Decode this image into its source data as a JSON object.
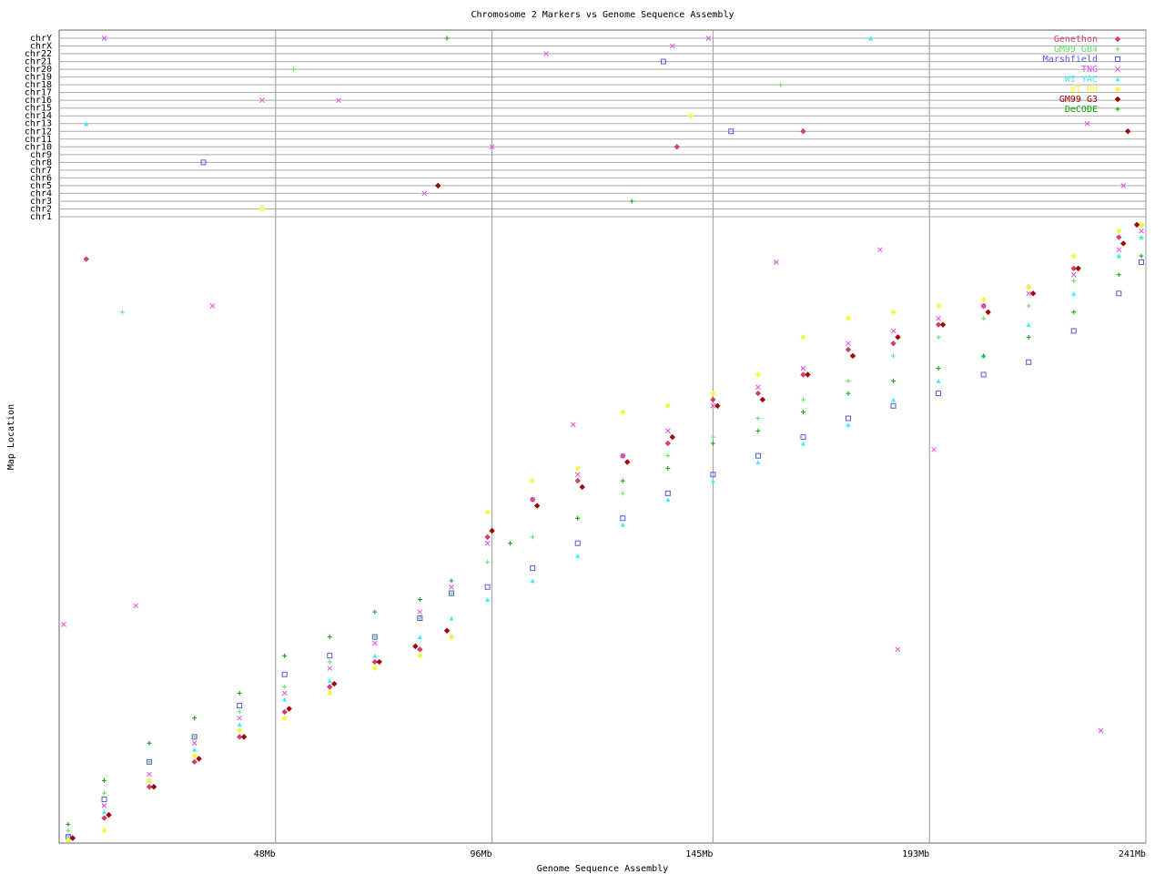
{
  "chart_data": {
    "type": "scatter",
    "title": "Chromosome 2 Markers vs Genome Sequence Assembly",
    "x_label": "Genome Sequence Assembly",
    "y_label": "Map Location",
    "xlim": [
      0,
      241
    ],
    "xticks": [
      {
        "value": 48,
        "label": "48Mb"
      },
      {
        "value": 96,
        "label": "96Mb"
      },
      {
        "value": 145,
        "label": "145Mb"
      },
      {
        "value": 193,
        "label": "193Mb"
      },
      {
        "value": 241,
        "label": "241Mb"
      }
    ],
    "ylim": [
      0,
      100
    ],
    "grid": true,
    "legend": "top-right",
    "chromosomes": [
      "chr1",
      "chr2",
      "chr3",
      "chr4",
      "chr5",
      "chr6",
      "chr7",
      "chr8",
      "chr9",
      "chr10",
      "chr11",
      "chr12",
      "chr13",
      "chr14",
      "chr15",
      "chr16",
      "chr17",
      "chr18",
      "chr19",
      "chr20",
      "chr21",
      "chr22",
      "chrX",
      "chrY"
    ],
    "series": [
      {
        "name": "Genethon",
        "color": "#d04068",
        "marker": "diamond",
        "x": [
          2,
          10,
          20,
          30,
          40,
          50,
          60,
          70,
          80,
          87,
          95,
          105,
          115,
          125,
          135,
          145,
          155,
          165,
          175,
          185,
          195,
          205,
          215,
          225,
          235,
          240,
          6
        ],
        "values": [
          0.5,
          4,
          9,
          13,
          17,
          21,
          25,
          29,
          31,
          33,
          49,
          55,
          58,
          62,
          64,
          71,
          72,
          75,
          79,
          80,
          83,
          86,
          89,
          92,
          97,
          99,
          93.5
        ],
        "other_x": [
          137,
          165
        ],
        "other_chrom": [
          "chr10",
          "chr12"
        ]
      },
      {
        "name": "GM99 GB4",
        "color": "#60e060",
        "marker": "plus",
        "x": [
          2,
          10,
          20,
          30,
          40,
          50,
          60,
          70,
          80,
          87,
          95,
          105,
          115,
          125,
          135,
          145,
          155,
          165,
          175,
          185,
          195,
          205,
          215,
          225,
          235,
          240,
          14
        ],
        "values": [
          2,
          8,
          13,
          17,
          21,
          25,
          29,
          33,
          36,
          40,
          45,
          49,
          52,
          56,
          62,
          65,
          68,
          71,
          74,
          78,
          81,
          84,
          86,
          90,
          94,
          97,
          85
        ],
        "other_x": [
          52,
          160
        ],
        "other_chrom": [
          "chr20",
          "chr18"
        ]
      },
      {
        "name": "Marshfield",
        "color": "#5858e0",
        "marker": "square",
        "x": [
          2,
          10,
          20,
          30,
          40,
          50,
          60,
          70,
          80,
          87,
          95,
          105,
          115,
          125,
          135,
          145,
          155,
          165,
          175,
          185,
          195,
          205,
          215,
          225,
          235,
          240
        ],
        "values": [
          1,
          7,
          13,
          17,
          22,
          27,
          30,
          33,
          36,
          40,
          41,
          44,
          48,
          52,
          56,
          59,
          62,
          65,
          68,
          70,
          72,
          75,
          77,
          82,
          88,
          93
        ],
        "other_x": [
          32,
          134,
          149
        ],
        "other_chrom": [
          "chr8",
          "chr21",
          "chr12"
        ]
      },
      {
        "name": "TNG",
        "color": "#e050e0",
        "marker": "x",
        "x": [
          2,
          10,
          20,
          30,
          40,
          50,
          60,
          70,
          80,
          87,
          95,
          105,
          115,
          125,
          135,
          145,
          155,
          165,
          175,
          185,
          195,
          205,
          215,
          225,
          235,
          240,
          1,
          34,
          114,
          194,
          186,
          231,
          182,
          17,
          159
        ],
        "values": [
          1,
          6,
          11,
          16,
          20,
          24,
          28,
          32,
          37,
          41,
          48,
          55,
          59,
          62,
          66,
          70,
          73,
          76,
          80,
          82,
          84,
          86,
          88,
          91,
          95,
          98,
          35,
          86,
          67,
          63,
          31,
          18,
          95,
          38,
          93
        ],
        "other_x": [
          10,
          45,
          62,
          108,
          136,
          144,
          236,
          228,
          81,
          96
        ],
        "other_chrom": [
          "chrY",
          "chr16",
          "chr16",
          "chr22",
          "chrX",
          "chrY",
          "chr5",
          "chr13",
          "chr4",
          "chr10"
        ]
      },
      {
        "name": "WI YAC",
        "color": "#40f0f0",
        "marker": "triangle",
        "x": [
          2,
          10,
          20,
          30,
          40,
          50,
          60,
          70,
          80,
          87,
          95,
          105,
          115,
          125,
          135,
          145,
          155,
          165,
          175,
          185,
          195,
          205,
          215,
          225,
          235,
          240
        ],
        "values": [
          1,
          5,
          10,
          15,
          19,
          23,
          26,
          30,
          33,
          36,
          39,
          42,
          46,
          51,
          55,
          58,
          61,
          64,
          67,
          71,
          74,
          78,
          83,
          88,
          94,
          97
        ],
        "other_x": [
          180,
          6
        ],
        "other_chrom": [
          "chrY",
          "chr13"
        ]
      },
      {
        "name": "WI RH",
        "color": "#f8f840",
        "marker": "diamond",
        "x": [
          2,
          10,
          20,
          30,
          40,
          50,
          60,
          70,
          80,
          87,
          95,
          105,
          115,
          125,
          135,
          145,
          155,
          165,
          175,
          185,
          195,
          205,
          215,
          225,
          235,
          240
        ],
        "values": [
          0.5,
          2,
          10,
          14,
          18,
          20,
          24,
          28,
          30,
          33,
          53,
          58,
          60,
          69,
          70,
          72,
          75,
          81,
          84,
          85,
          86,
          87,
          89,
          94,
          98,
          99
        ],
        "other_x": [
          45,
          140
        ],
        "other_chrom": [
          "chr2",
          "chr14"
        ]
      },
      {
        "name": "GM99 G3",
        "color": "#a00000",
        "marker": "diamond",
        "x": [
          3,
          11,
          21,
          31,
          41,
          51,
          61,
          71,
          79,
          86,
          96,
          106,
          116,
          126,
          136,
          146,
          156,
          166,
          176,
          186,
          196,
          206,
          216,
          226,
          236,
          239
        ],
        "values": [
          0.8,
          4.5,
          9,
          13.5,
          17,
          21.5,
          25.5,
          29,
          31.5,
          34,
          50,
          54,
          57,
          61,
          65,
          70,
          71,
          75,
          78,
          81,
          83,
          85,
          88,
          92,
          96,
          99
        ],
        "other_x": [
          84,
          237
        ],
        "other_chrom": [
          "chr5",
          "chr12"
        ]
      },
      {
        "name": "DeCODE",
        "color": "#00a000",
        "marker": "plus",
        "x": [
          2,
          10,
          20,
          30,
          40,
          50,
          60,
          70,
          80,
          87,
          100,
          115,
          125,
          135,
          145,
          155,
          165,
          175,
          185,
          195,
          205,
          215,
          225,
          235,
          240
        ],
        "values": [
          3,
          10,
          16,
          20,
          24,
          30,
          33,
          37,
          39,
          42,
          48,
          52,
          58,
          60,
          64,
          66,
          69,
          72,
          74,
          76,
          78,
          81,
          85,
          91,
          94
        ],
        "other_x": [
          86,
          127
        ],
        "other_chrom": [
          "chrY",
          "chr3"
        ]
      }
    ]
  }
}
